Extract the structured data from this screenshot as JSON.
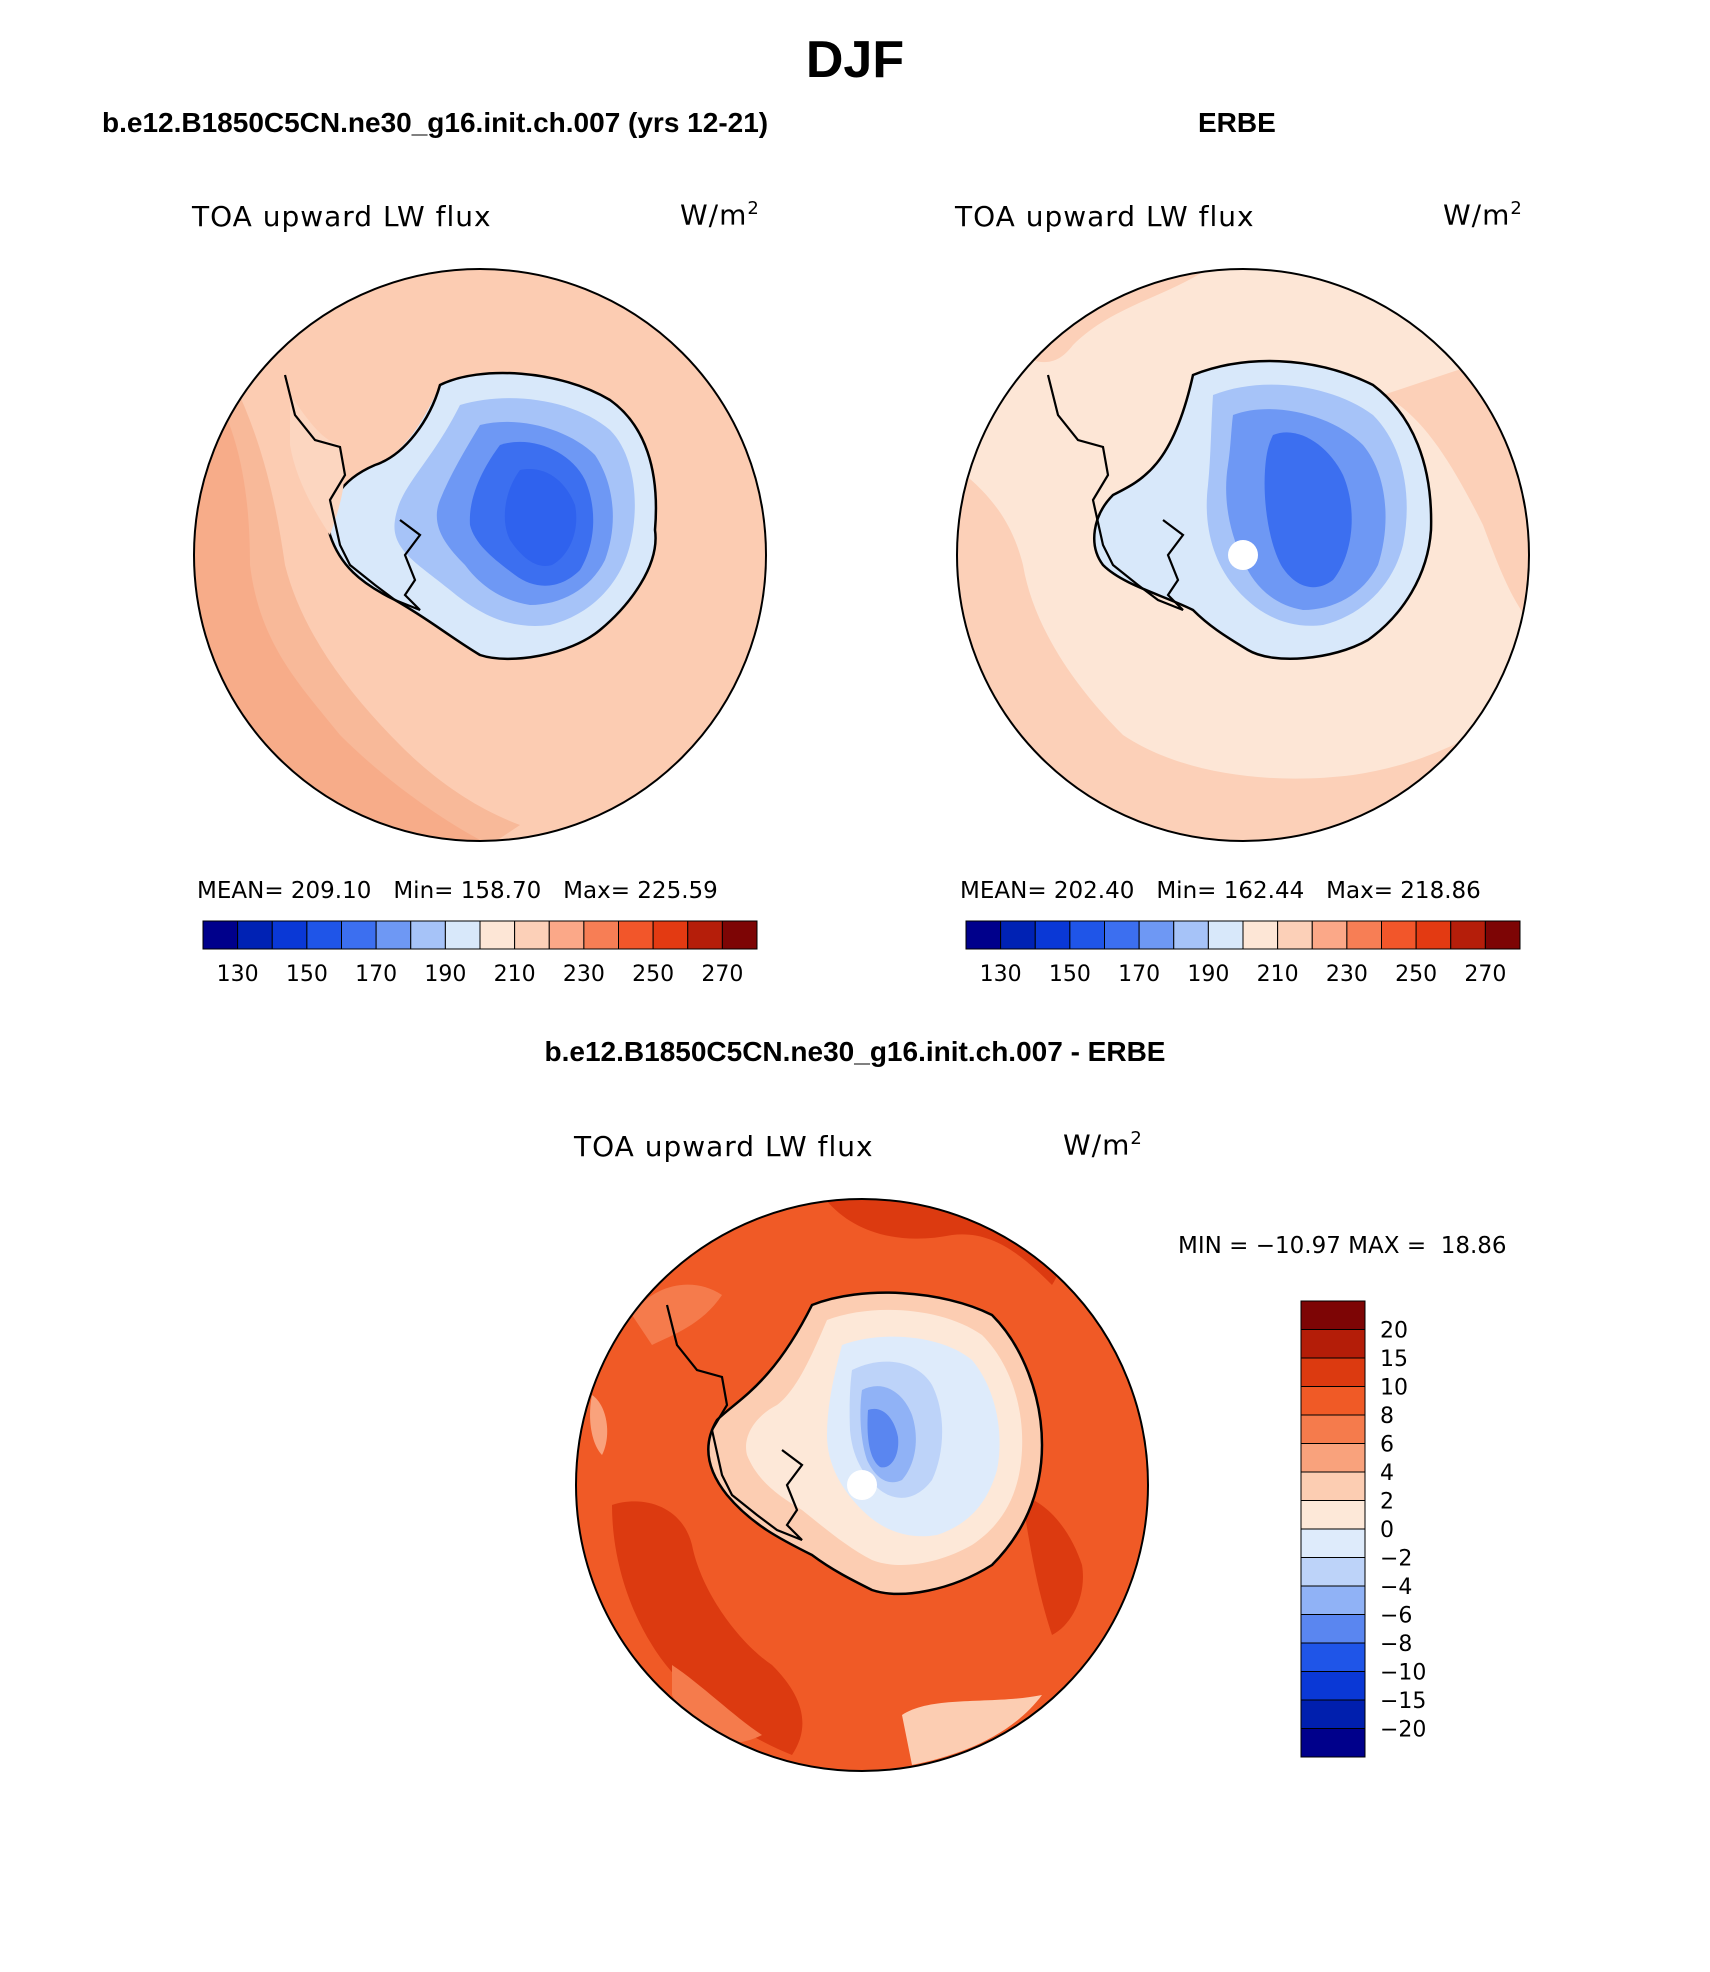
{
  "figure": {
    "title": "DJF"
  },
  "panels": [
    {
      "id": "model",
      "title": "b.e12.B1850C5CN.ne30_g16.init.ch.007 (yrs 12-21)",
      "variable": "TOA upward LW flux",
      "units": "W/m",
      "units_exp": "2",
      "stats": {
        "mean_label": "MEAN=",
        "mean": "209.10",
        "min_label": "Min=",
        "min": "158.70",
        "max_label": "Max=",
        "max": "225.59"
      }
    },
    {
      "id": "obs",
      "title": "ERBE",
      "variable": "TOA upward LW flux",
      "units": "W/m",
      "units_exp": "2",
      "stats": {
        "mean_label": "MEAN=",
        "mean": "202.40",
        "min_label": "Min=",
        "min": "162.44",
        "max_label": "Max=",
        "max": "218.86"
      }
    },
    {
      "id": "diff",
      "title": "b.e12.B1850C5CN.ne30_g16.init.ch.007 - ERBE",
      "variable": "TOA upward LW flux",
      "units": "W/m",
      "units_exp": "2",
      "stats": {
        "min_label": "MIN =",
        "min": "−10.97",
        "max_label": "MAX =",
        "max": "18.86"
      }
    }
  ],
  "colorbars": {
    "abs": {
      "colors": [
        "#00008b",
        "#0022b4",
        "#0a38d6",
        "#1f55e8",
        "#3c6ff0",
        "#6e98f4",
        "#a6c3f8",
        "#d8e8fa",
        "#fde6d6",
        "#fcd0b8",
        "#fba888",
        "#f77e55",
        "#f2562a",
        "#e33a12",
        "#b51e0a",
        "#7d0505"
      ],
      "tick_labels": [
        "130",
        "150",
        "170",
        "190",
        "210",
        "230",
        "250",
        "270"
      ]
    },
    "diff": {
      "colors": [
        "#00008b",
        "#001fae",
        "#0a38d6",
        "#1f55e8",
        "#5a86f0",
        "#90b2f6",
        "#bdd3f9",
        "#deebfb",
        "#fde8d8",
        "#fccdb2",
        "#f9a27c",
        "#f57b4c",
        "#f05a26",
        "#dc3a10",
        "#b41d08",
        "#7d0505"
      ],
      "tick_labels": [
        "20",
        "15",
        "10",
        "8",
        "6",
        "4",
        "2",
        "0",
        "−2",
        "−4",
        "−6",
        "−8",
        "−10",
        "−15",
        "−20"
      ]
    }
  }
}
